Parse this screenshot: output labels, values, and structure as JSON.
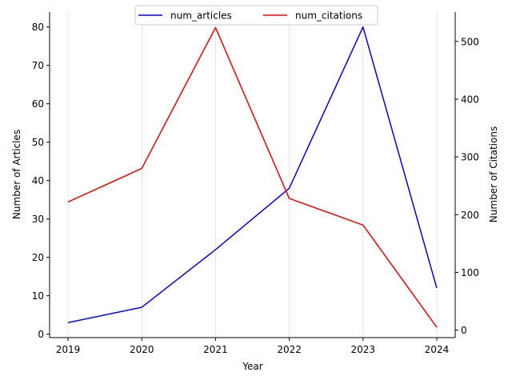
{
  "chart_data": {
    "type": "line",
    "x": [
      2019,
      2020,
      2021,
      2022,
      2023,
      2024
    ],
    "x_tick_labels": [
      "2019",
      "2020",
      "2021",
      "2022",
      "2023",
      "2024"
    ],
    "xlabel": "Year",
    "ylabel_left": "Number of Articles",
    "ylabel_right": "Number of Citations",
    "ylim_left": [
      -0.9,
      83.9
    ],
    "ylim_right": [
      -13,
      551
    ],
    "yticks_left": [
      0,
      10,
      20,
      30,
      40,
      50,
      60,
      70,
      80
    ],
    "yticks_right": [
      0,
      100,
      200,
      300,
      400,
      500
    ],
    "grid": "vertical dotted",
    "legend": {
      "placement": "top-center",
      "columns": 2
    },
    "series": [
      {
        "name": "num_articles",
        "axis": "left",
        "color": "#0000ff",
        "values": [
          3,
          7,
          22,
          38,
          80,
          12
        ]
      },
      {
        "name": "num_citations",
        "axis": "right",
        "color": "#ff0000",
        "values": [
          222,
          280,
          524,
          228,
          182,
          5
        ]
      }
    ]
  }
}
